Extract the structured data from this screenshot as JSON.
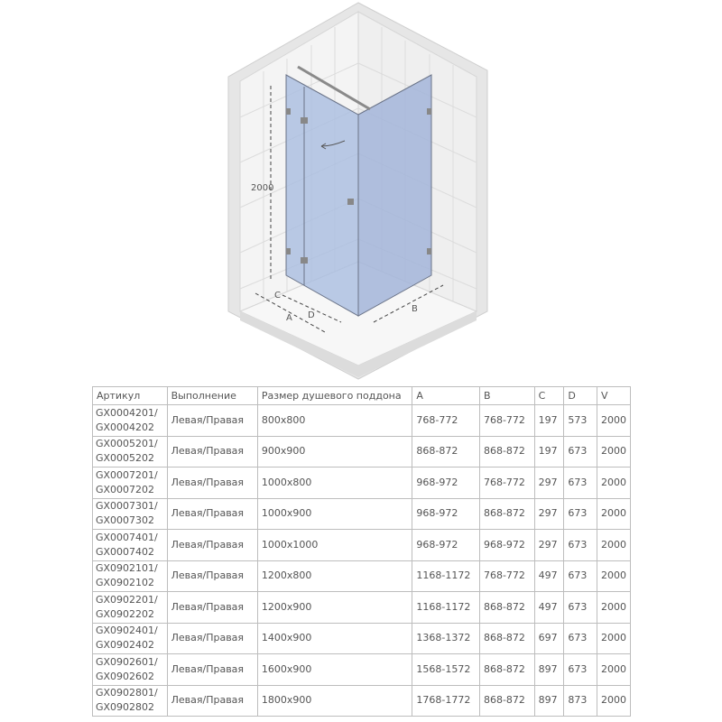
{
  "diagram": {
    "height_label": "2000",
    "dim_labels": {
      "a": "A",
      "b": "B",
      "c": "C",
      "d": "D"
    },
    "glass_color": "#a9bde0"
  },
  "table": {
    "headers": [
      "Артикул",
      "Выполнение",
      "Размер душевого поддона",
      "A",
      "B",
      "C",
      "D",
      "V"
    ],
    "rows": [
      {
        "art1": "GX0004201/",
        "art2": "GX0004202",
        "side": "Левая/Правая",
        "size": "800x800",
        "a": "768-772",
        "b": "768-772",
        "c": "197",
        "d": "573",
        "v": "2000"
      },
      {
        "art1": "GX0005201/",
        "art2": "GX0005202",
        "side": "Левая/Правая",
        "size": "900x900",
        "a": "868-872",
        "b": "868-872",
        "c": "197",
        "d": "673",
        "v": "2000"
      },
      {
        "art1": "GX0007201/",
        "art2": "GX0007202",
        "side": "Левая/Правая",
        "size": "1000x800",
        "a": "968-972",
        "b": "768-772",
        "c": "297",
        "d": "673",
        "v": "2000"
      },
      {
        "art1": "GX0007301/",
        "art2": "GX0007302",
        "side": "Левая/Правая",
        "size": "1000x900",
        "a": "968-972",
        "b": "868-872",
        "c": "297",
        "d": "673",
        "v": "2000"
      },
      {
        "art1": "GX0007401/",
        "art2": "GX0007402",
        "side": "Левая/Правая",
        "size": "1000x1000",
        "a": "968-972",
        "b": "968-972",
        "c": "297",
        "d": "673",
        "v": "2000"
      },
      {
        "art1": "GX0902101/",
        "art2": "GX0902102",
        "side": "Левая/Правая",
        "size": "1200x800",
        "a": "1168-1172",
        "b": "768-772",
        "c": "497",
        "d": "673",
        "v": "2000"
      },
      {
        "art1": "GX0902201/",
        "art2": "GX0902202",
        "side": "Левая/Правая",
        "size": "1200x900",
        "a": "1168-1172",
        "b": "868-872",
        "c": "497",
        "d": "673",
        "v": "2000"
      },
      {
        "art1": "GX0902401/",
        "art2": "GX0902402",
        "side": "Левая/Правая",
        "size": "1400x900",
        "a": "1368-1372",
        "b": "868-872",
        "c": "697",
        "d": "673",
        "v": "2000"
      },
      {
        "art1": "GX0902601/",
        "art2": "GX0902602",
        "side": "Левая/Правая",
        "size": "1600x900",
        "a": "1568-1572",
        "b": "868-872",
        "c": "897",
        "d": "673",
        "v": "2000"
      },
      {
        "art1": "GX0902801/",
        "art2": "GX0902802",
        "side": "Левая/Правая",
        "size": "1800x900",
        "a": "1768-1772",
        "b": "868-872",
        "c": "897",
        "d": "873",
        "v": "2000"
      }
    ]
  }
}
